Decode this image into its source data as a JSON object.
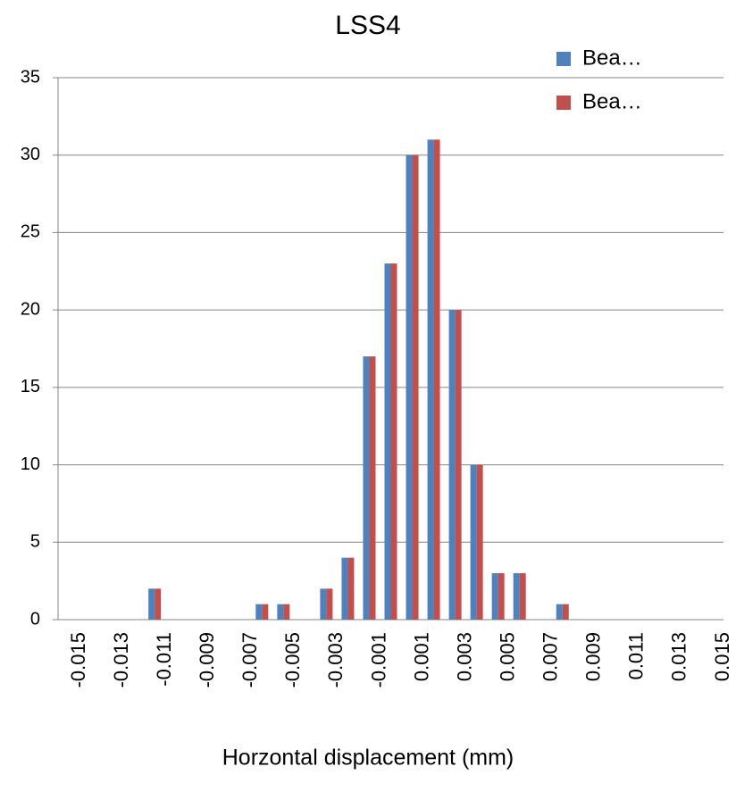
{
  "chart_data": {
    "type": "bar",
    "title": "LSS4",
    "x_label": "Horzontal displacement (mm)",
    "categories": [
      "-0.015",
      null,
      "-0.013",
      null,
      "-0.011",
      null,
      "-0.009",
      null,
      "-0.007",
      null,
      "-0.005",
      null,
      "-0.003",
      null,
      "-0.001",
      null,
      "0.001",
      null,
      "0.003",
      null,
      "0.005",
      null,
      "0.007",
      null,
      "0.009",
      null,
      "0.011",
      null,
      "0.013",
      null,
      "0.015"
    ],
    "series": [
      {
        "name": "Bea…",
        "color": "#4f81bd",
        "values": [
          0,
          0,
          0,
          0,
          2,
          0,
          0,
          0,
          0,
          1,
          1,
          0,
          2,
          4,
          17,
          23,
          30,
          31,
          20,
          10,
          3,
          3,
          0,
          1,
          0,
          0,
          0,
          0,
          0,
          0,
          0
        ]
      },
      {
        "name": "Bea…",
        "color": "#c0504d",
        "values": [
          0,
          0,
          0,
          0,
          2,
          0,
          0,
          0,
          0,
          1,
          1,
          0,
          2,
          4,
          17,
          23,
          30,
          31,
          20,
          10,
          3,
          3,
          0,
          1,
          0,
          0,
          0,
          0,
          0,
          0,
          0
        ]
      }
    ],
    "ylim": [
      0,
      35
    ],
    "yticks": [
      0,
      5,
      10,
      15,
      20,
      25,
      30,
      35
    ],
    "grid": true,
    "legend": "top-right"
  }
}
